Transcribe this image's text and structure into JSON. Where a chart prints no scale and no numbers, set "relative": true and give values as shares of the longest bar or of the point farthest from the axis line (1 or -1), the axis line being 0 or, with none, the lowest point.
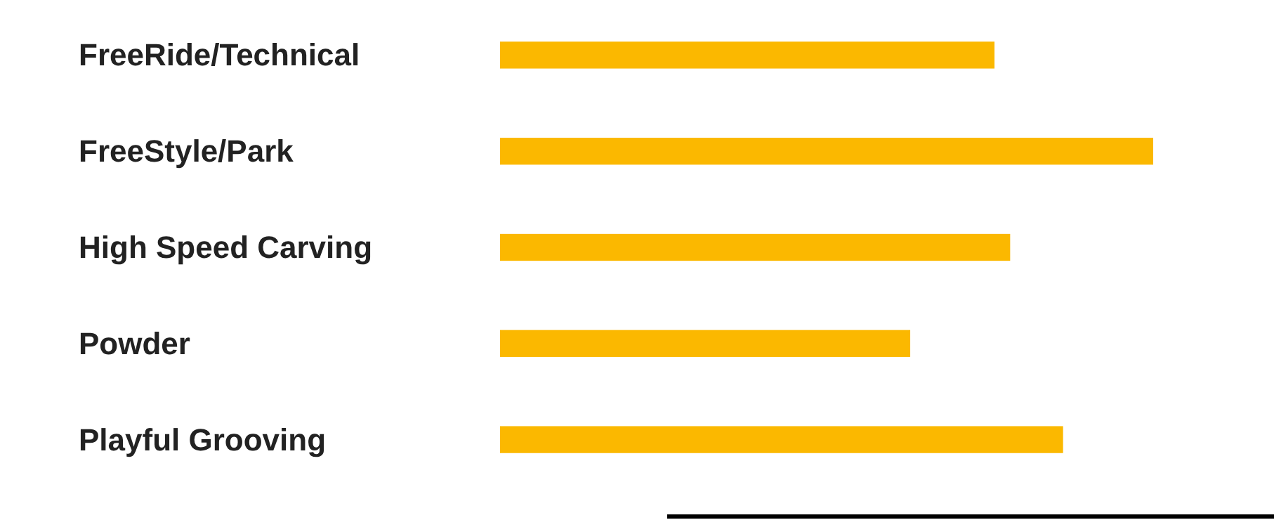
{
  "chart_data": {
    "type": "bar",
    "orientation": "horizontal",
    "relative": true,
    "categories": [
      "FreeRide/Technical",
      "FreeStyle/Park",
      "High Speed Carving",
      "Powder",
      "Playful Grooving"
    ],
    "values": [
      0.757,
      1,
      0.781,
      0.628,
      0.862
    ],
    "color": "#fbb800"
  }
}
